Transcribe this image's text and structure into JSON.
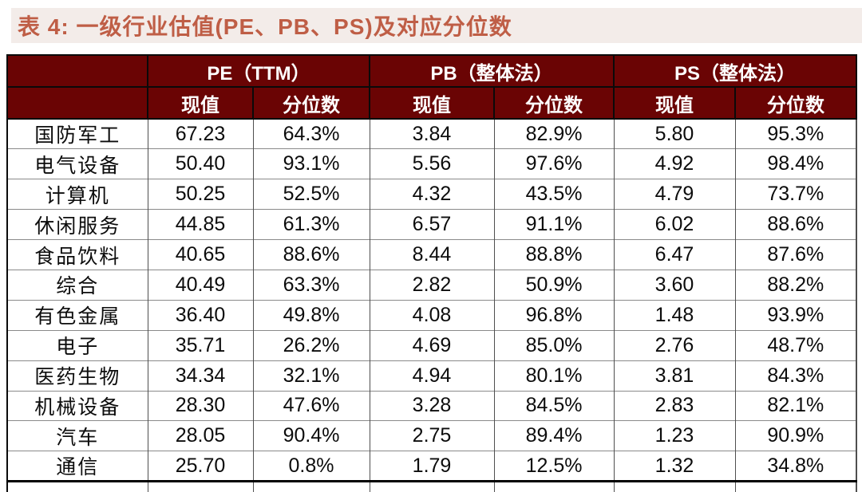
{
  "title": "表 4:  一级行业估值(PE、PB、PS)及对应分位数",
  "table": {
    "corner_label": "",
    "groups": [
      {
        "label": "PE（TTM）"
      },
      {
        "label": "PB（整体法）"
      },
      {
        "label": "PS（整体法）"
      }
    ],
    "subheaders": [
      "现值",
      "分位数"
    ],
    "rows": [
      {
        "industry": "国防军工",
        "values": [
          "67.23",
          "64.3%",
          "3.84",
          "82.9%",
          "5.80",
          "95.3%"
        ]
      },
      {
        "industry": "电气设备",
        "values": [
          "50.40",
          "93.1%",
          "5.56",
          "97.6%",
          "4.92",
          "98.4%"
        ]
      },
      {
        "industry": "计算机",
        "values": [
          "50.25",
          "52.5%",
          "4.32",
          "43.5%",
          "4.79",
          "73.7%"
        ]
      },
      {
        "industry": "休闲服务",
        "values": [
          "44.85",
          "61.3%",
          "6.57",
          "91.1%",
          "6.02",
          "88.6%"
        ]
      },
      {
        "industry": "食品饮料",
        "values": [
          "40.65",
          "88.6%",
          "8.44",
          "88.8%",
          "6.47",
          "87.6%"
        ]
      },
      {
        "industry": "综合",
        "values": [
          "40.49",
          "63.3%",
          "2.82",
          "50.9%",
          "3.60",
          "88.2%"
        ]
      },
      {
        "industry": "有色金属",
        "values": [
          "36.40",
          "49.8%",
          "4.08",
          "96.8%",
          "1.48",
          "93.9%"
        ]
      },
      {
        "industry": "电子",
        "values": [
          "35.71",
          "26.2%",
          "4.69",
          "85.0%",
          "2.76",
          "48.7%"
        ]
      },
      {
        "industry": "医药生物",
        "values": [
          "34.34",
          "32.1%",
          "4.94",
          "80.1%",
          "3.81",
          "84.3%"
        ]
      },
      {
        "industry": "机械设备",
        "values": [
          "28.30",
          "47.6%",
          "3.28",
          "84.5%",
          "2.83",
          "82.1%"
        ]
      },
      {
        "industry": "汽车",
        "values": [
          "28.05",
          "90.4%",
          "2.75",
          "89.4%",
          "1.23",
          "90.9%"
        ]
      },
      {
        "industry": "通信",
        "values": [
          "25.70",
          "0.8%",
          "1.79",
          "12.5%",
          "1.32",
          "34.8%"
        ]
      }
    ]
  },
  "colors": {
    "header_bg": "#6a0404",
    "header_text": "#ffffff",
    "title_bg": "#f3ece9",
    "title_text": "#bf5e46",
    "grid_dark": "#4f4f4f",
    "grid_gray": "#8a8a8a"
  }
}
